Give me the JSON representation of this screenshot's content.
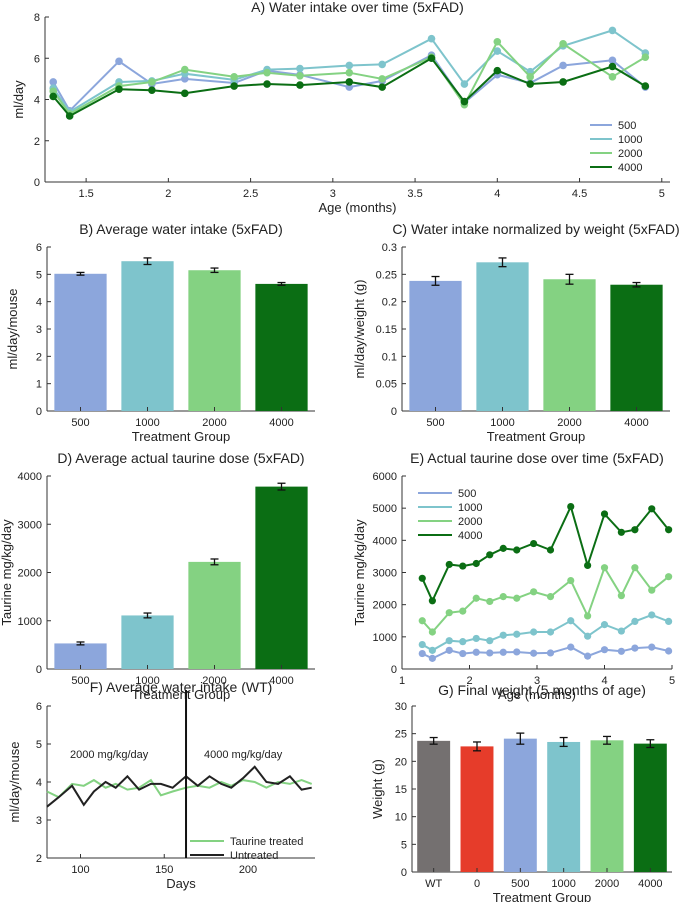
{
  "figure_title": "5xFAD taurine study figure",
  "colors": {
    "500": "#8ca6dc",
    "1000": "#7ec4cc",
    "2000": "#84d282",
    "4000": "#0b6e14",
    "WT": "#747070",
    "0": "#e63c2a",
    "untreated": "#222222",
    "axis": "#333333"
  },
  "chart_data": [
    {
      "id": "A",
      "type": "line",
      "title": "A) Water intake over time (5xFAD)",
      "xlabel": "Age (months)",
      "ylabel": "ml/day",
      "xlim": [
        1.25,
        5.05
      ],
      "ylim": [
        0,
        8
      ],
      "xticks": [
        1.5,
        2,
        2.5,
        3,
        3.5,
        4,
        4.5,
        5
      ],
      "xtick_labels": [
        "1.5",
        "2",
        "2.5",
        "3",
        "3.5",
        "4",
        "4.5",
        "5"
      ],
      "yticks": [
        0,
        2,
        4,
        6,
        8
      ],
      "ytick_labels": [
        "0",
        "2",
        "4",
        "6",
        "8"
      ],
      "legend_position": "bottom-right",
      "x": [
        1.3,
        1.4,
        1.7,
        1.9,
        2.1,
        2.4,
        2.6,
        2.8,
        3.1,
        3.3,
        3.6,
        3.8,
        4.0,
        4.2,
        4.4,
        4.7,
        4.9
      ],
      "series": [
        {
          "name": "500",
          "color_key": "500",
          "values": [
            4.85,
            3.45,
            5.85,
            4.75,
            5.0,
            4.8,
            5.4,
            5.2,
            4.6,
            4.9,
            6.15,
            3.85,
            5.2,
            4.8,
            5.65,
            5.9,
            4.6
          ]
        },
        {
          "name": "1000",
          "color_key": "1000",
          "values": [
            4.55,
            3.4,
            4.85,
            4.9,
            5.25,
            4.95,
            5.45,
            5.5,
            5.65,
            5.7,
            6.95,
            4.75,
            6.35,
            5.35,
            6.6,
            7.35,
            6.25
          ]
        },
        {
          "name": "2000",
          "color_key": "2000",
          "values": [
            4.4,
            3.3,
            4.65,
            4.85,
            5.45,
            5.1,
            5.3,
            5.15,
            5.3,
            5.0,
            6.05,
            3.75,
            6.8,
            5.1,
            6.7,
            5.1,
            6.05
          ]
        },
        {
          "name": "4000",
          "color_key": "4000",
          "values": [
            4.15,
            3.2,
            4.5,
            4.45,
            4.3,
            4.65,
            4.75,
            4.7,
            4.85,
            4.6,
            6.0,
            3.9,
            5.4,
            4.75,
            4.85,
            5.6,
            4.65
          ]
        }
      ]
    },
    {
      "id": "B",
      "type": "bar",
      "title": "B) Average water intake (5xFAD)",
      "xlabel": "Treatment Group",
      "ylabel": "ml/day/mouse",
      "ylim": [
        0,
        6
      ],
      "yticks": [
        0,
        1,
        2,
        3,
        4,
        5,
        6
      ],
      "ytick_labels": [
        "0",
        "1",
        "2",
        "3",
        "4",
        "5",
        "6"
      ],
      "categories": [
        "500",
        "1000",
        "2000",
        "4000"
      ],
      "color_keys": [
        "500",
        "1000",
        "2000",
        "4000"
      ],
      "values": [
        5.02,
        5.48,
        5.15,
        4.65
      ],
      "errors": [
        0.05,
        0.12,
        0.08,
        0.05
      ]
    },
    {
      "id": "C",
      "type": "bar",
      "title": "C) Water intake normalized by weight (5xFAD)",
      "xlabel": "Treatment Group",
      "ylabel": "ml/day/weight (g)",
      "ylim": [
        0,
        0.3
      ],
      "yticks": [
        0,
        0.05,
        0.1,
        0.15,
        0.2,
        0.25,
        0.3
      ],
      "ytick_labels": [
        "0",
        "0.05",
        "0.1",
        "0.15",
        "0.2",
        "0.25",
        "0.3"
      ],
      "categories": [
        "500",
        "1000",
        "2000",
        "4000"
      ],
      "color_keys": [
        "500",
        "1000",
        "2000",
        "4000"
      ],
      "values": [
        0.238,
        0.272,
        0.241,
        0.231
      ],
      "errors": [
        0.008,
        0.008,
        0.009,
        0.004
      ]
    },
    {
      "id": "D",
      "type": "bar",
      "title": "D) Average actual taurine dose (5xFAD)",
      "xlabel": "Treatment Group",
      "ylabel": "Taurine mg/kg/day",
      "ylim": [
        0,
        4000
      ],
      "yticks": [
        0,
        1000,
        2000,
        3000,
        4000
      ],
      "ytick_labels": [
        "0",
        "1000",
        "2000",
        "3000",
        "4000"
      ],
      "categories": [
        "500",
        "1000",
        "2000",
        "4000"
      ],
      "color_keys": [
        "500",
        "1000",
        "2000",
        "4000"
      ],
      "values": [
        530,
        1110,
        2220,
        3780
      ],
      "errors": [
        30,
        50,
        60,
        70
      ]
    },
    {
      "id": "E",
      "type": "line",
      "title": "E) Actual taurine dose over time (5xFAD)",
      "xlabel": "Age (months)",
      "ylabel": "Taurine mg/kg/day",
      "xlim": [
        1,
        5
      ],
      "ylim": [
        0,
        6000
      ],
      "xticks": [
        1,
        2,
        3,
        4,
        5
      ],
      "xtick_labels": [
        "1",
        "2",
        "3",
        "4",
        "5"
      ],
      "yticks": [
        0,
        1000,
        2000,
        3000,
        4000,
        5000,
        6000
      ],
      "ytick_labels": [
        "0",
        "1000",
        "2000",
        "3000",
        "4000",
        "5000",
        "6000"
      ],
      "legend_position": "top-left",
      "x": [
        1.3,
        1.45,
        1.7,
        1.9,
        2.1,
        2.3,
        2.5,
        2.7,
        2.95,
        3.2,
        3.5,
        3.75,
        4.0,
        4.25,
        4.45,
        4.7,
        4.95
      ],
      "series": [
        {
          "name": "500",
          "color_key": "500",
          "values": [
            480,
            330,
            580,
            480,
            520,
            500,
            520,
            530,
            490,
            500,
            680,
            400,
            600,
            550,
            650,
            680,
            560
          ]
        },
        {
          "name": "1000",
          "color_key": "1000",
          "values": [
            760,
            580,
            880,
            850,
            950,
            880,
            1050,
            1080,
            1150,
            1150,
            1500,
            1020,
            1380,
            1180,
            1480,
            1680,
            1480
          ]
        },
        {
          "name": "2000",
          "color_key": "2000",
          "values": [
            1500,
            1150,
            1750,
            1800,
            2200,
            2100,
            2250,
            2200,
            2400,
            2250,
            2750,
            1650,
            3150,
            2280,
            3150,
            2450,
            2870
          ]
        },
        {
          "name": "4000",
          "color_key": "4000",
          "values": [
            2820,
            2120,
            3250,
            3200,
            3280,
            3550,
            3750,
            3700,
            3900,
            3700,
            5050,
            3220,
            4820,
            4250,
            4330,
            4980,
            4330
          ]
        }
      ]
    },
    {
      "id": "F",
      "type": "line",
      "title": "F) Average water intake (WT)",
      "xlabel": "Days",
      "ylabel": "ml/day/mouse",
      "xlim": [
        80,
        240
      ],
      "ylim": [
        2,
        6
      ],
      "xticks": [
        100,
        150,
        200
      ],
      "xtick_labels": [
        "100",
        "150",
        "200"
      ],
      "yticks": [
        2,
        3,
        4,
        5,
        6
      ],
      "ytick_labels": [
        "2",
        "3",
        "4",
        "5",
        "6"
      ],
      "vline_x": 163,
      "annotations": [
        "2000 mg/kg/day",
        "4000 mg/kg/day"
      ],
      "legend_position": "bottom-right",
      "x": [
        80,
        87,
        95,
        102,
        108,
        115,
        121,
        128,
        135,
        142,
        148,
        155,
        163,
        170,
        177,
        184,
        190,
        197,
        204,
        211,
        218,
        225,
        232,
        238
      ],
      "series": [
        {
          "name": "Taurine treated",
          "color_key": "2000",
          "values": [
            3.75,
            3.6,
            3.95,
            3.9,
            4.05,
            3.85,
            3.95,
            3.8,
            3.85,
            4.05,
            3.65,
            3.75,
            3.85,
            3.9,
            3.85,
            4.0,
            3.9,
            4.05,
            4.0,
            3.85,
            4.0,
            3.95,
            4.05,
            3.95
          ]
        },
        {
          "name": "Untreated",
          "color_key": "untreated",
          "values": [
            3.35,
            3.6,
            3.9,
            3.4,
            3.75,
            4.0,
            3.85,
            4.15,
            3.8,
            3.95,
            3.95,
            3.85,
            4.15,
            3.9,
            4.15,
            3.95,
            3.85,
            4.1,
            4.4,
            4.0,
            3.95,
            4.15,
            3.8,
            3.85
          ]
        }
      ]
    },
    {
      "id": "G",
      "type": "bar",
      "title": "G) Final weight (5 months of age)",
      "xlabel": "Treatment Group",
      "ylabel": "Weight (g)",
      "ylim": [
        0,
        30
      ],
      "yticks": [
        0,
        5,
        10,
        15,
        20,
        25,
        30
      ],
      "ytick_labels": [
        "0",
        "5",
        "10",
        "15",
        "20",
        "25",
        "30"
      ],
      "categories": [
        "WT",
        "0",
        "500",
        "1000",
        "2000",
        "4000"
      ],
      "color_keys": [
        "WT",
        "0",
        "500",
        "1000",
        "2000",
        "4000"
      ],
      "values": [
        23.7,
        22.7,
        24.1,
        23.5,
        23.8,
        23.2
      ],
      "errors": [
        0.6,
        0.8,
        1.0,
        0.8,
        0.7,
        0.7
      ]
    }
  ]
}
